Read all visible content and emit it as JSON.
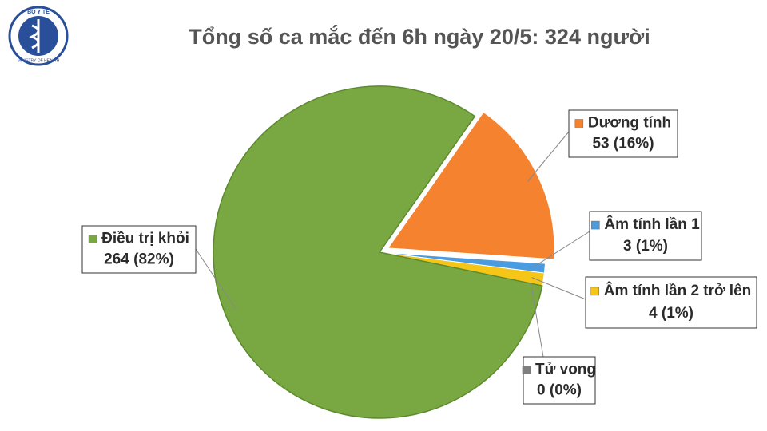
{
  "logo": {
    "top": "BỘ Y TẾ",
    "bottom": "MINISTRY OF HEALTH"
  },
  "chart_data": {
    "type": "pie",
    "title": "Tổng số ca mắc đến 6h ngày 20/5: 324 người",
    "categories": [
      "Dương tính",
      "Âm tính lần 1",
      "Âm tính lần 2 trở lên",
      "Tử vong",
      "Điều trị khỏi"
    ],
    "values": [
      53,
      3,
      4,
      0,
      264
    ],
    "value_labels": [
      "53 (16%)",
      "3 (1%)",
      "4 (1%)",
      "0 (0%)",
      "264 (82%)"
    ],
    "colors": [
      "#f4822f",
      "#4a9be0",
      "#f5c518",
      "#7f7f7f",
      "#79a843"
    ],
    "exploded": [
      true,
      false,
      false,
      false,
      false
    ]
  }
}
